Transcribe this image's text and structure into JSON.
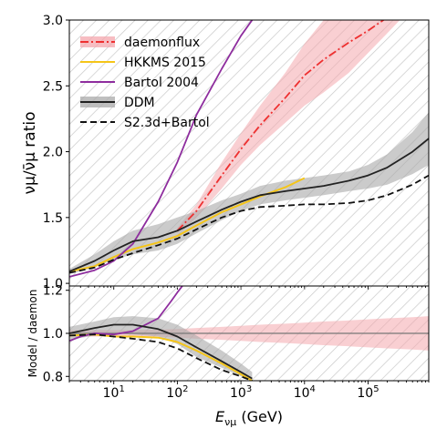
{
  "chart_data": {
    "type": "line",
    "xlabel_main": "E",
    "xlabel_sub": "νμ",
    "xlabel_unit": " (GeV)",
    "xscale": "log",
    "xlim": [
      2,
      900000
    ],
    "xtick_exponents": [
      1,
      2,
      3,
      4,
      5
    ],
    "xtick_base": "10",
    "legend_position": "top-left",
    "panels": [
      {
        "id": "main",
        "ylabel": "νμ/ν̄μ ratio",
        "ylim": [
          0.98,
          3.0
        ],
        "yticks": [
          1.0,
          1.5,
          2.0,
          2.5,
          3.0
        ],
        "ytick_labels": [
          "1.0",
          "1.5",
          "2.0",
          "2.5",
          "3.0"
        ],
        "bands": [
          {
            "name": "daemonflux",
            "color": "#f4a7ad",
            "x": [
              100,
              200,
              500,
              1000,
              2000,
              5000,
              10000,
              20000,
              50000,
              100000,
              200000,
              500000
            ],
            "lower": [
              1.38,
              1.5,
              1.72,
              1.9,
              2.05,
              2.22,
              2.35,
              2.45,
              2.6,
              2.75,
              2.9,
              3.1
            ],
            "upper": [
              1.42,
              1.6,
              1.92,
              2.14,
              2.35,
              2.6,
              2.82,
              3.0,
              3.2,
              3.4,
              3.6,
              3.9
            ]
          },
          {
            "name": "DDM",
            "color": "#a9a9a9",
            "x": [
              2,
              5,
              10,
              20,
              50,
              100,
              200,
              500,
              1000,
              2000,
              5000,
              10000,
              20000,
              50000,
              100000,
              200000,
              500000,
              900000
            ],
            "lower": [
              1.07,
              1.12,
              1.18,
              1.22,
              1.25,
              1.3,
              1.38,
              1.48,
              1.55,
              1.6,
              1.63,
              1.65,
              1.67,
              1.7,
              1.72,
              1.75,
              1.83,
              1.9
            ],
            "upper": [
              1.11,
              1.22,
              1.32,
              1.4,
              1.45,
              1.5,
              1.55,
              1.63,
              1.68,
              1.74,
              1.78,
              1.8,
              1.82,
              1.85,
              1.9,
              1.98,
              2.15,
              2.3
            ]
          }
        ],
        "series": [
          {
            "name": "daemonflux",
            "color": "#ee3030",
            "style": "dashdot",
            "x": [
              100,
              200,
              500,
              1000,
              2000,
              5000,
              10000,
              20000,
              50000,
              100000,
              200000,
              300000
            ],
            "y": [
              1.4,
              1.55,
              1.82,
              2.02,
              2.2,
              2.41,
              2.58,
              2.7,
              2.83,
              2.92,
              3.02,
              3.08
            ]
          },
          {
            "name": "HKKMS 2015",
            "color": "#f5c518",
            "style": "solid",
            "x": [
              2,
              5,
              10,
              20,
              50,
              100,
              200,
              500,
              1000,
              2000,
              5000,
              10000
            ],
            "y": [
              1.09,
              1.13,
              1.2,
              1.26,
              1.31,
              1.36,
              1.44,
              1.54,
              1.6,
              1.66,
              1.73,
              1.8
            ]
          },
          {
            "name": "Bartol 2004",
            "color": "#8e2d9e",
            "style": "solid",
            "x": [
              2,
              5,
              10,
              20,
              50,
              100,
              200,
              500,
              1000,
              1500,
              2000
            ],
            "y": [
              1.05,
              1.1,
              1.17,
              1.3,
              1.62,
              1.92,
              2.28,
              2.63,
              2.88,
              3.0,
              3.05
            ]
          },
          {
            "name": "DDM",
            "color": "#222222",
            "style": "solid",
            "x": [
              2,
              5,
              10,
              20,
              50,
              100,
              200,
              500,
              1000,
              2000,
              5000,
              10000,
              20000,
              50000,
              100000,
              200000,
              500000,
              900000
            ],
            "y": [
              1.09,
              1.17,
              1.25,
              1.32,
              1.35,
              1.4,
              1.47,
              1.56,
              1.62,
              1.67,
              1.7,
              1.72,
              1.74,
              1.78,
              1.82,
              1.88,
              2.0,
              2.1
            ]
          },
          {
            "name": "S2.3d+Bartol",
            "color": "#111111",
            "style": "dashed",
            "x": [
              2,
              5,
              10,
              20,
              50,
              100,
              200,
              500,
              1000,
              2000,
              5000,
              10000,
              20000,
              50000,
              100000,
              200000,
              500000,
              900000
            ],
            "y": [
              1.08,
              1.12,
              1.18,
              1.23,
              1.29,
              1.34,
              1.41,
              1.5,
              1.55,
              1.58,
              1.59,
              1.6,
              1.6,
              1.61,
              1.63,
              1.67,
              1.75,
              1.82
            ]
          }
        ]
      },
      {
        "id": "ratio",
        "ylabel": "Model / daemon",
        "ylim": [
          0.78,
          1.22
        ],
        "yticks": [
          0.8,
          1.0,
          1.2
        ],
        "ytick_labels": [
          "0.8",
          "1.0",
          "1.2"
        ],
        "reference_line": 1.0,
        "bands": [
          {
            "name": "daemonflux",
            "color": "#f4a7ad",
            "x": [
              2,
              5,
              10,
              20,
              50,
              100,
              200,
              500,
              1000,
              2000,
              5000,
              10000,
              20000,
              50000,
              100000,
              200000,
              500000,
              900000
            ],
            "lower": [
              0.985,
              0.985,
              0.985,
              0.985,
              0.985,
              0.98,
              0.975,
              0.97,
              0.965,
              0.96,
              0.955,
              0.95,
              0.945,
              0.94,
              0.935,
              0.93,
              0.925,
              0.92
            ],
            "upper": [
              1.015,
              1.015,
              1.015,
              1.015,
              1.018,
              1.02,
              1.025,
              1.03,
              1.035,
              1.04,
              1.045,
              1.05,
              1.055,
              1.06,
              1.065,
              1.07,
              1.075,
              1.08
            ]
          },
          {
            "name": "DDM",
            "color": "#a9a9a9",
            "x": [
              2,
              5,
              10,
              20,
              50,
              100,
              200,
              500,
              1000,
              1500
            ],
            "lower": [
              0.97,
              0.99,
              1.0,
              0.995,
              0.985,
              0.95,
              0.89,
              0.84,
              0.8,
              0.78
            ],
            "upper": [
              1.03,
              1.055,
              1.075,
              1.08,
              1.07,
              1.04,
              0.99,
              0.92,
              0.86,
              0.82
            ]
          }
        ],
        "series": [
          {
            "name": "HKKMS 2015",
            "color": "#f5c518",
            "style": "solid",
            "x": [
              2,
              5,
              10,
              20,
              50,
              100,
              200,
              500,
              1000,
              1500
            ],
            "y": [
              0.99,
              0.995,
              0.985,
              0.985,
              0.98,
              0.96,
              0.92,
              0.86,
              0.81,
              0.78
            ]
          },
          {
            "name": "Bartol 2004",
            "color": "#8e2d9e",
            "style": "solid",
            "x": [
              2,
              3,
              5,
              10,
              20,
              50,
              80,
              100,
              120
            ],
            "y": [
              0.965,
              0.985,
              1.0,
              0.995,
              1.01,
              1.07,
              1.15,
              1.19,
              1.22
            ]
          },
          {
            "name": "DDM",
            "color": "#222222",
            "style": "solid",
            "x": [
              2,
              5,
              10,
              20,
              50,
              100,
              200,
              500,
              1000,
              1500
            ],
            "y": [
              1.0,
              1.025,
              1.04,
              1.04,
              1.02,
              0.985,
              0.935,
              0.87,
              0.82,
              0.79
            ]
          },
          {
            "name": "S2.3d+Bartol",
            "color": "#111111",
            "style": "dashed",
            "x": [
              2,
              5,
              10,
              20,
              50,
              100,
              200,
              500,
              1000,
              1500
            ],
            "y": [
              0.99,
              0.995,
              0.985,
              0.975,
              0.96,
              0.93,
              0.885,
              0.83,
              0.8,
              0.78
            ]
          }
        ]
      }
    ],
    "legend": [
      {
        "label": "daemonflux",
        "color": "#ee3030",
        "style": "dashdot",
        "band": "#f4a7ad"
      },
      {
        "label": "HKKMS 2015",
        "color": "#f5c518",
        "style": "solid"
      },
      {
        "label": "Bartol 2004",
        "color": "#8e2d9e",
        "style": "solid"
      },
      {
        "label": "DDM",
        "color": "#222222",
        "style": "solid",
        "band": "#a9a9a9"
      },
      {
        "label": "S2.3d+Bartol",
        "color": "#111111",
        "style": "dashed"
      }
    ],
    "hatch_color": "#c8c8c8"
  }
}
